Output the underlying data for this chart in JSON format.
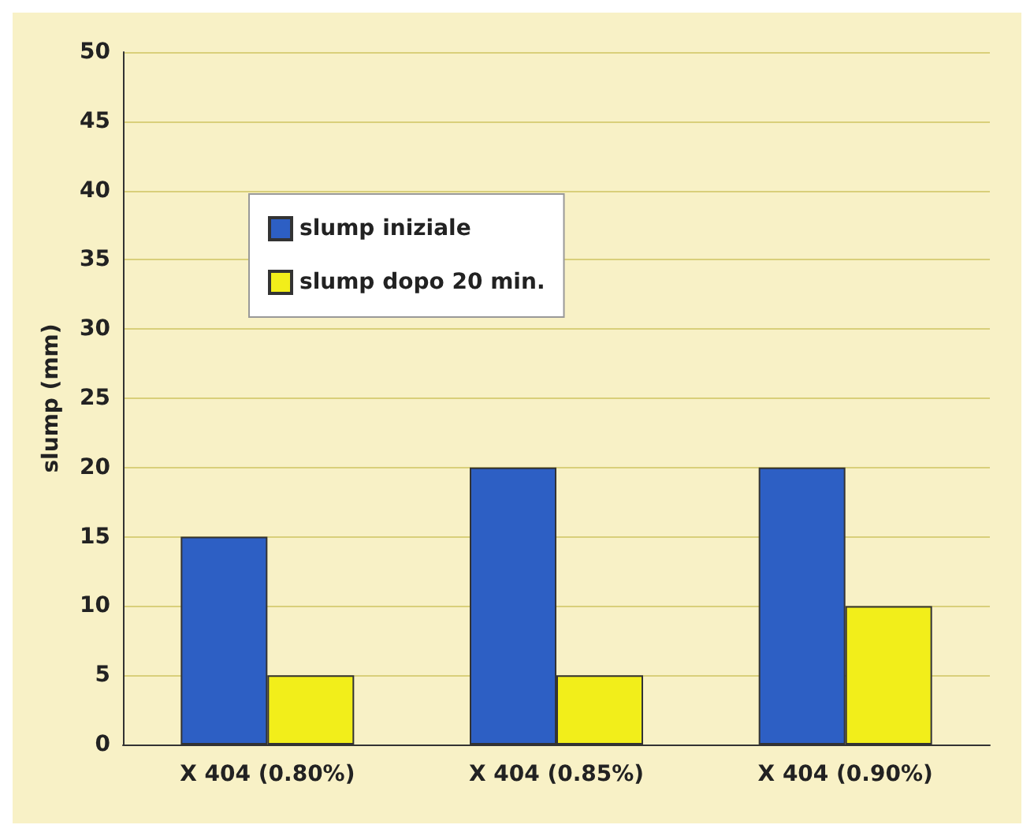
{
  "chart_data": {
    "type": "bar",
    "ylabel": "slump (mm)",
    "categories": [
      "X 404 (0.80%)",
      "X 404 (0.85%)",
      "X 404 (0.90%)"
    ],
    "series": [
      {
        "name": "slump iniziale",
        "color": "#2d5fc4",
        "values": [
          15,
          20,
          20
        ]
      },
      {
        "name": "slump dopo 20 min.",
        "color": "#f2ee1a",
        "values": [
          5,
          5,
          10
        ]
      }
    ],
    "ylim": [
      0,
      50
    ],
    "yticks": [
      0,
      5,
      10,
      15,
      20,
      25,
      30,
      35,
      40,
      45,
      50
    ],
    "grid": "y",
    "legend": "top left"
  }
}
